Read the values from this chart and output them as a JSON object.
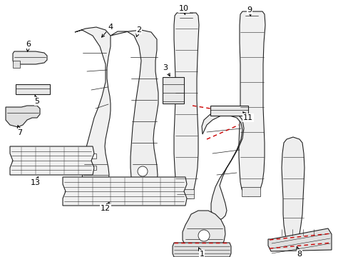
{
  "background_color": "#ffffff",
  "line_color": "#222222",
  "red_dash_color": "#cc0000",
  "figsize": [
    4.89,
    3.6
  ],
  "dpi": 100
}
